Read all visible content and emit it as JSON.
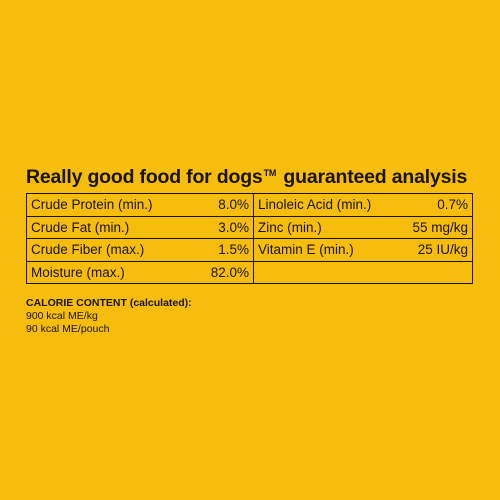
{
  "panel": {
    "title": "Really good food for dogs",
    "trademark": "TM",
    "title_suffix": "guaranteed analysis",
    "rows": [
      {
        "left_label": "Crude Protein (min.)",
        "left_value": "8.0%",
        "right_label": "Linoleic Acid (min.)",
        "right_value": "0.7%"
      },
      {
        "left_label": "Crude Fat (min.)",
        "left_value": "3.0%",
        "right_label": "Zinc (min.)",
        "right_value": "55 mg/kg"
      },
      {
        "left_label": "Crude Fiber (max.)",
        "left_value": "1.5%",
        "right_label": "Vitamin E (min.)",
        "right_value": "25 IU/kg"
      },
      {
        "left_label": "Moisture (max.)",
        "left_value": "82.0%",
        "right_label": "",
        "right_value": ""
      }
    ],
    "calorie": {
      "heading": "CALORIE CONTENT (calculated):",
      "line1": "900 kcal ME/kg",
      "line2": "90 kcal ME/pouch"
    }
  },
  "colors": {
    "background": "#f7bd0d",
    "text": "#1a1306"
  }
}
